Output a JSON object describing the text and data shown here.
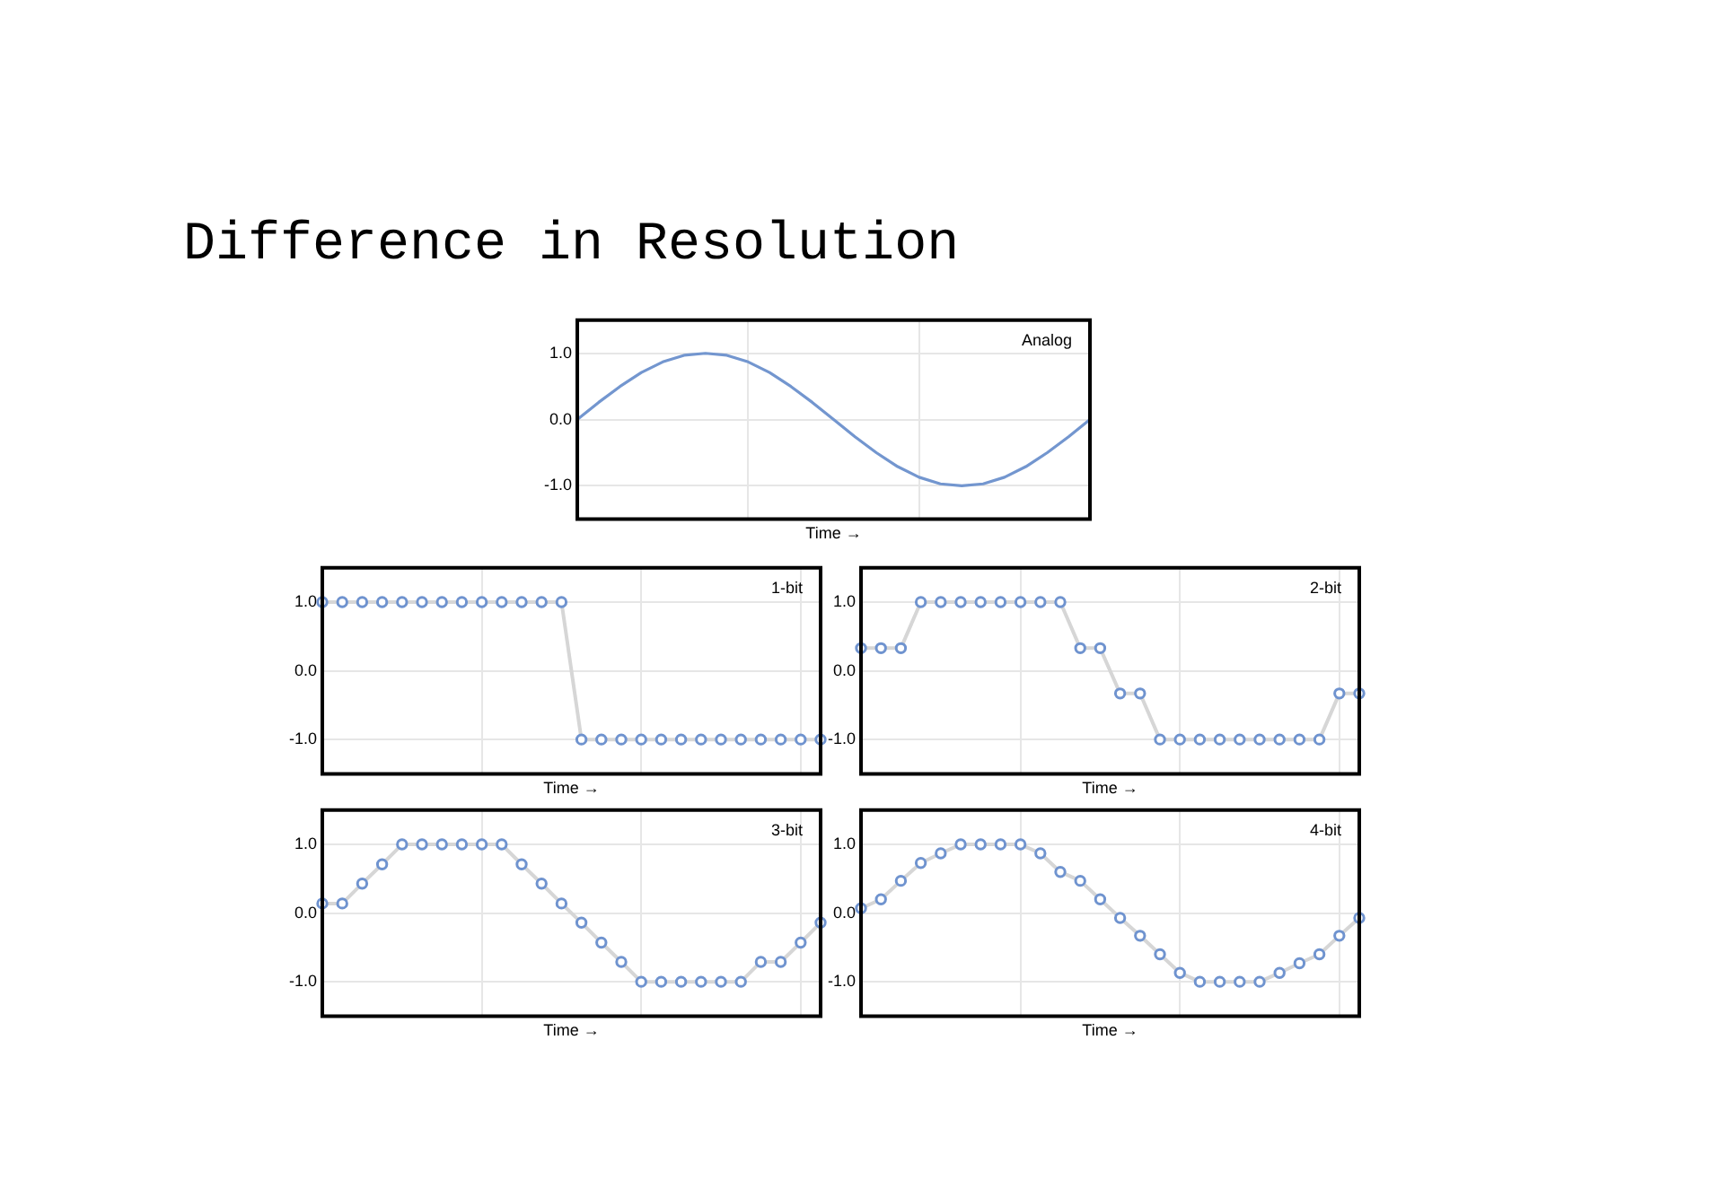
{
  "chart_data": [
    {
      "type": "line",
      "title": "Analog",
      "xlabel": "Time →",
      "annotations": [
        "Difference in Resolution"
      ],
      "grid": true,
      "legend": false,
      "tick_labels": "y",
      "marker": "none",
      "ylim": [
        -1.5,
        1.5
      ],
      "yticks": [
        {
          "value": -1,
          "label": "-1.0"
        },
        {
          "value": 0,
          "label": "0.0"
        },
        {
          "value": 1,
          "label": "1.0"
        }
      ],
      "categories": [
        null,
        null,
        null,
        null,
        null,
        null,
        null,
        null,
        null,
        null,
        null,
        null,
        null,
        null,
        null,
        null,
        null,
        null,
        null,
        null,
        null,
        null,
        null,
        null,
        null
      ],
      "series": [
        {
          "color": "#7396cf",
          "values": [
            0,
            0.26,
            0.5,
            0.71,
            0.87,
            0.97,
            1,
            0.97,
            0.87,
            0.71,
            0.5,
            0.26,
            0,
            -0.26,
            -0.5,
            -0.71,
            -0.87,
            -0.97,
            -1,
            -0.97,
            -0.87,
            -0.71,
            -0.5,
            -0.26,
            0
          ]
        }
      ]
    },
    {
      "type": "line",
      "title": "1-bit",
      "xlabel": "Time →",
      "grid": true,
      "legend": false,
      "tick_labels": "y",
      "marker": "circle",
      "ylim": [
        -1.5,
        1.5
      ],
      "yticks": [
        {
          "value": -1,
          "label": "-1.0"
        },
        {
          "value": 0,
          "label": "0.0"
        },
        {
          "value": 1,
          "label": "1.0"
        }
      ],
      "categories": [
        null,
        null,
        null,
        null,
        null,
        null,
        null,
        null,
        null,
        null,
        null,
        null,
        null,
        null,
        null,
        null,
        null,
        null,
        null,
        null,
        null,
        null,
        null,
        null,
        null,
        null
      ],
      "series": [
        {
          "color": "#6f93cf",
          "values": [
            1,
            1,
            1,
            1,
            1,
            1,
            1,
            1,
            1,
            1,
            1,
            1,
            1,
            -1,
            -1,
            -1,
            -1,
            -1,
            -1,
            -1,
            -1,
            -1,
            -1,
            -1,
            -1,
            -1
          ]
        }
      ]
    },
    {
      "type": "line",
      "title": "2-bit",
      "xlabel": "Time →",
      "grid": true,
      "legend": false,
      "tick_labels": "y",
      "marker": "circle",
      "ylim": [
        -1.5,
        1.5
      ],
      "yticks": [
        {
          "value": -1,
          "label": "-1.0"
        },
        {
          "value": 0,
          "label": "0.0"
        },
        {
          "value": 1,
          "label": "1.0"
        }
      ],
      "categories": [
        null,
        null,
        null,
        null,
        null,
        null,
        null,
        null,
        null,
        null,
        null,
        null,
        null,
        null,
        null,
        null,
        null,
        null,
        null,
        null,
        null,
        null,
        null,
        null,
        null,
        null
      ],
      "series": [
        {
          "color": "#6f93cf",
          "values": [
            0.33,
            0.33,
            0.33,
            1,
            1,
            1,
            1,
            1,
            1,
            1,
            1,
            0.33,
            0.33,
            -0.33,
            -0.33,
            -1,
            -1,
            -1,
            -1,
            -1,
            -1,
            -1,
            -1,
            -1,
            -0.33,
            -0.33
          ]
        }
      ]
    },
    {
      "type": "line",
      "title": "3-bit",
      "xlabel": "Time →",
      "grid": true,
      "legend": false,
      "tick_labels": "y",
      "marker": "circle",
      "ylim": [
        -1.5,
        1.5
      ],
      "yticks": [
        {
          "value": -1,
          "label": "-1.0"
        },
        {
          "value": 0,
          "label": "0.0"
        },
        {
          "value": 1,
          "label": "1.0"
        }
      ],
      "categories": [
        null,
        null,
        null,
        null,
        null,
        null,
        null,
        null,
        null,
        null,
        null,
        null,
        null,
        null,
        null,
        null,
        null,
        null,
        null,
        null,
        null,
        null,
        null,
        null,
        null,
        null
      ],
      "series": [
        {
          "color": "#6f93cf",
          "values": [
            0.14,
            0.14,
            0.43,
            0.71,
            1,
            1,
            1,
            1,
            1,
            1,
            0.71,
            0.43,
            0.14,
            -0.14,
            -0.43,
            -0.71,
            -1,
            -1,
            -1,
            -1,
            -1,
            -1,
            -0.71,
            -0.71,
            -0.43,
            -0.14
          ]
        }
      ]
    },
    {
      "type": "line",
      "title": "4-bit",
      "xlabel": "Time →",
      "grid": true,
      "legend": false,
      "tick_labels": "y",
      "marker": "circle",
      "ylim": [
        -1.5,
        1.5
      ],
      "yticks": [
        {
          "value": -1,
          "label": "-1.0"
        },
        {
          "value": 0,
          "label": "0.0"
        },
        {
          "value": 1,
          "label": "1.0"
        }
      ],
      "categories": [
        null,
        null,
        null,
        null,
        null,
        null,
        null,
        null,
        null,
        null,
        null,
        null,
        null,
        null,
        null,
        null,
        null,
        null,
        null,
        null,
        null,
        null,
        null,
        null,
        null,
        null
      ],
      "series": [
        {
          "color": "#6f93cf",
          "values": [
            0.07,
            0.2,
            0.47,
            0.73,
            0.87,
            1,
            1,
            1,
            1,
            0.87,
            0.6,
            0.47,
            0.2,
            -0.07,
            -0.33,
            -0.6,
            -0.87,
            -1,
            -1,
            -1,
            -1,
            -0.87,
            -0.73,
            -0.6,
            -0.33,
            -0.07
          ]
        }
      ]
    }
  ]
}
